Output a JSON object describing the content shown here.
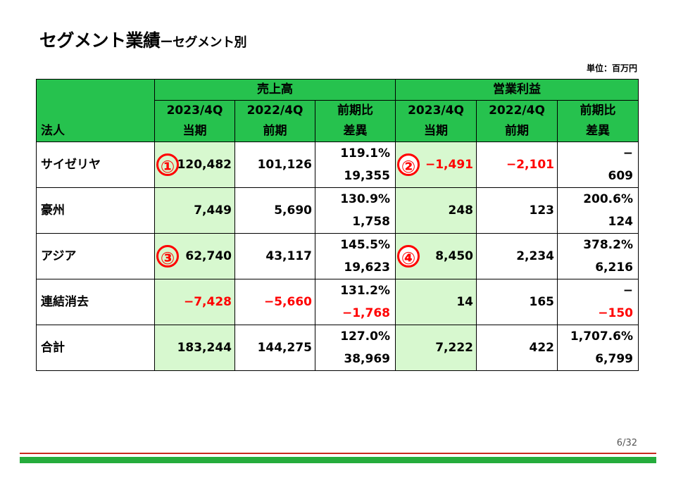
{
  "title": {
    "main": "セグメント業績",
    "sub": "ーセグメント別"
  },
  "unit_label": "単位：百万円",
  "table": {
    "corner": "法人",
    "groups": [
      "売上高",
      "営業利益"
    ],
    "periods": {
      "current": "2023/4Q",
      "prior": "2022/4Q",
      "current_label": "当期",
      "prior_label": "前期",
      "ratio_label": "前期比",
      "diff_label": "差異"
    },
    "rows": [
      {
        "name": "サイゼリヤ",
        "sales_cur": "120,482",
        "sales_prev": "101,126",
        "sales_ratio": "119.1%",
        "sales_diff": "19,355",
        "op_cur": "−1,491",
        "op_prev": "−2,101",
        "op_ratio": "−",
        "op_diff": "609"
      },
      {
        "name": "豪州",
        "sales_cur": "7,449",
        "sales_prev": "5,690",
        "sales_ratio": "130.9%",
        "sales_diff": "1,758",
        "op_cur": "248",
        "op_prev": "123",
        "op_ratio": "200.6%",
        "op_diff": "124"
      },
      {
        "name": "アジア",
        "sales_cur": "62,740",
        "sales_prev": "43,117",
        "sales_ratio": "145.5%",
        "sales_diff": "19,623",
        "op_cur": "8,450",
        "op_prev": "2,234",
        "op_ratio": "378.2%",
        "op_diff": "6,216"
      },
      {
        "name": "連結消去",
        "sales_cur": "−7,428",
        "sales_prev": "−5,660",
        "sales_ratio": "131.2%",
        "sales_diff": "−1,768",
        "op_cur": "14",
        "op_prev": "165",
        "op_ratio": "−",
        "op_diff": "−150"
      },
      {
        "name": "合計",
        "sales_cur": "183,244",
        "sales_prev": "144,275",
        "sales_ratio": "127.0%",
        "sales_diff": "38,969",
        "op_cur": "7,222",
        "op_prev": "422",
        "op_ratio": "1,707.6%",
        "op_diff": "6,799"
      }
    ],
    "markers": [
      "①",
      "②",
      "③",
      "④"
    ]
  },
  "page_number": "6/32",
  "colors": {
    "header_green": "#26c24e",
    "highlight": "#d7f8cf",
    "negative": "#ff0000",
    "footer_red": "#c8281e",
    "footer_green": "#25ac3c"
  }
}
